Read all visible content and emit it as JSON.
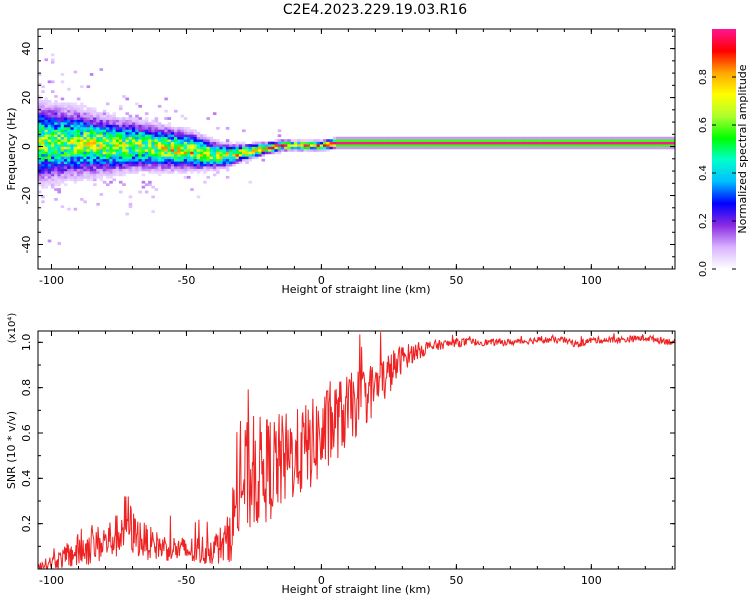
{
  "title": "C2E4.2023.229.19.03.R16",
  "colors": {
    "snr_line": "#ee2222",
    "colormap": [
      "#ffffff",
      "#d9b3ff",
      "#8a2be2",
      "#0000ff",
      "#00bfff",
      "#00ffcc",
      "#00ff00",
      "#adff2f",
      "#ffff00",
      "#ffa500",
      "#ff0000",
      "#ff1493"
    ]
  },
  "chart_data": [
    {
      "type": "heatmap",
      "title": "",
      "xlabel": "Height of straight line (km)",
      "ylabel": "Frequency (Hz)",
      "xlim": [
        -105,
        131
      ],
      "ylim": [
        -50,
        48
      ],
      "xticks": [
        "-100",
        "-50",
        "0",
        "50",
        "100"
      ],
      "xtick_values": [
        -100,
        -50,
        0,
        50,
        100
      ],
      "yticks": [
        "-40",
        "-20",
        "0",
        "20",
        "40"
      ],
      "ytick_values": [
        -40,
        -20,
        0,
        20,
        40
      ],
      "colorbar": {
        "label": "Normalized spectral amplitude",
        "range": [
          0,
          1
        ],
        "ticks": [
          "0.0",
          "0.2",
          "0.4",
          "0.6",
          "0.8"
        ],
        "tick_values": [
          0.0,
          0.2,
          0.4,
          0.6,
          0.8
        ]
      },
      "ridge": {
        "x": [
          -105,
          -90,
          -80,
          -70,
          -60,
          -50,
          -45,
          -40,
          -35,
          -30,
          -25,
          -20,
          -15,
          -10,
          -5,
          0,
          5,
          10,
          20,
          30,
          50,
          70,
          90,
          110,
          131
        ],
        "freq": [
          1,
          1,
          0,
          0,
          -1,
          -2,
          -3,
          -4,
          -4,
          -3,
          -2,
          -1,
          0,
          0,
          0,
          0,
          1,
          1,
          1,
          1,
          1,
          1,
          1,
          1,
          1
        ],
        "peak_amplitude": [
          0.7,
          0.7,
          0.75,
          0.7,
          0.75,
          0.8,
          0.8,
          0.75,
          0.8,
          0.85,
          0.9,
          0.95,
          1.0,
          1.0,
          0.95,
          0.9,
          1.0,
          1.0,
          1.0,
          1.0,
          1.0,
          1.0,
          1.0,
          1.0,
          1.0
        ],
        "spread_hz": [
          14,
          12,
          10,
          9,
          8,
          7,
          6,
          5,
          4,
          3,
          2.5,
          2,
          1.8,
          1.7,
          1.7,
          1.7,
          1.7,
          1.7,
          1.7,
          1.7,
          1.7,
          1.7,
          1.7,
          1.7,
          1.7
        ]
      }
    },
    {
      "type": "line",
      "title": "",
      "xlabel": "Height of straight line (km)",
      "ylabel": "SNR (10 * v/v)",
      "y_multiplier_label": "(x10⁴)",
      "xlim": [
        -105,
        131
      ],
      "ylim": [
        0,
        1.05
      ],
      "xticks": [
        "-100",
        "-50",
        "0",
        "50",
        "100"
      ],
      "xtick_values": [
        -100,
        -50,
        0,
        50,
        100
      ],
      "yticks": [
        "0.2",
        "0.4",
        "0.6",
        "0.8",
        "1.0"
      ],
      "ytick_values": [
        0.2,
        0.4,
        0.6,
        0.8,
        1.0
      ],
      "series": [
        {
          "x": [
            -105,
            -100,
            -95,
            -90,
            -85,
            -80,
            -75,
            -72,
            -70,
            -65,
            -60,
            -55,
            -50,
            -45,
            -40,
            -35,
            -32,
            -30,
            -27,
            -25,
            -20,
            -15,
            -10,
            -5,
            0,
            5,
            10,
            15,
            20,
            25,
            30,
            35,
            40,
            45,
            50,
            60,
            70,
            80,
            90,
            95,
            100,
            110,
            120,
            131
          ],
          "y": [
            0.01,
            0.03,
            0.05,
            0.08,
            0.1,
            0.12,
            0.15,
            0.22,
            0.16,
            0.12,
            0.1,
            0.09,
            0.08,
            0.08,
            0.09,
            0.12,
            0.25,
            0.38,
            0.4,
            0.42,
            0.44,
            0.47,
            0.5,
            0.54,
            0.58,
            0.65,
            0.7,
            0.75,
            0.8,
            0.86,
            0.93,
            0.96,
            0.98,
            0.99,
            1.0,
            1.0,
            1.0,
            1.01,
            1.01,
            0.99,
            1.01,
            1.01,
            1.02,
            1.0
          ],
          "noise": [
            0.02,
            0.03,
            0.05,
            0.08,
            0.08,
            0.09,
            0.1,
            0.14,
            0.1,
            0.08,
            0.06,
            0.06,
            0.06,
            0.07,
            0.07,
            0.1,
            0.2,
            0.25,
            0.26,
            0.25,
            0.24,
            0.22,
            0.2,
            0.2,
            0.2,
            0.18,
            0.16,
            0.14,
            0.12,
            0.1,
            0.06,
            0.04,
            0.03,
            0.02,
            0.02,
            0.015,
            0.015,
            0.015,
            0.015,
            0.015,
            0.015,
            0.015,
            0.015,
            0.015
          ]
        }
      ]
    }
  ]
}
